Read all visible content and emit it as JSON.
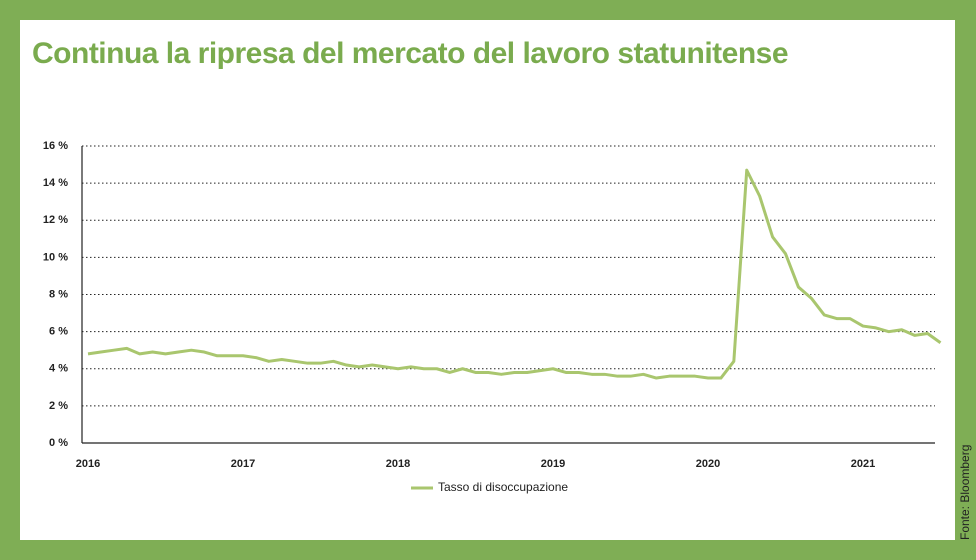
{
  "chart_data": {
    "type": "line",
    "title": "Continua la ripresa del mercato del lavoro statunitense",
    "source": "Fonte: Bloomberg",
    "categories": [
      "2016",
      null,
      null,
      null,
      null,
      null,
      null,
      null,
      null,
      null,
      null,
      null,
      "2017",
      null,
      null,
      null,
      null,
      null,
      null,
      null,
      null,
      null,
      null,
      null,
      "2018",
      null,
      null,
      null,
      null,
      null,
      null,
      null,
      null,
      null,
      null,
      null,
      "2019",
      null,
      null,
      null,
      null,
      null,
      null,
      null,
      null,
      null,
      null,
      null,
      "2020",
      null,
      null,
      null,
      null,
      null,
      null,
      null,
      null,
      null,
      null,
      null,
      "2021",
      null,
      null,
      null,
      null,
      null,
      null
    ],
    "series": [
      {
        "name": "Tasso di disoccupazione",
        "color": "#a9c66e",
        "values": [
          4.8,
          4.9,
          5.0,
          5.1,
          4.8,
          4.9,
          4.8,
          4.9,
          5.0,
          4.9,
          4.7,
          4.7,
          4.7,
          4.6,
          4.4,
          4.5,
          4.4,
          4.3,
          4.3,
          4.4,
          4.2,
          4.1,
          4.2,
          4.1,
          4.0,
          4.1,
          4.0,
          4.0,
          3.8,
          4.0,
          3.8,
          3.8,
          3.7,
          3.8,
          3.8,
          3.9,
          4.0,
          3.8,
          3.8,
          3.7,
          3.7,
          3.6,
          3.6,
          3.7,
          3.5,
          3.6,
          3.6,
          3.6,
          3.5,
          3.5,
          4.4,
          14.7,
          13.3,
          11.1,
          10.2,
          8.4,
          7.8,
          6.9,
          6.7,
          6.7,
          6.3,
          6.2,
          6.0,
          6.1,
          5.8,
          5.9,
          5.4
        ]
      }
    ],
    "ylim": [
      0,
      16
    ],
    "yticks": [
      {
        "value": 0,
        "label": "0 %"
      },
      {
        "value": 2,
        "label": "2 %"
      },
      {
        "value": 4,
        "label": "4 %"
      },
      {
        "value": 6,
        "label": "6 %"
      },
      {
        "value": 8,
        "label": "8 %"
      },
      {
        "value": 10,
        "label": "10 %"
      },
      {
        "value": 12,
        "label": "12 %"
      },
      {
        "value": 14,
        "label": "14 %"
      },
      {
        "value": 16,
        "label": "16 %"
      }
    ],
    "grid": true
  }
}
